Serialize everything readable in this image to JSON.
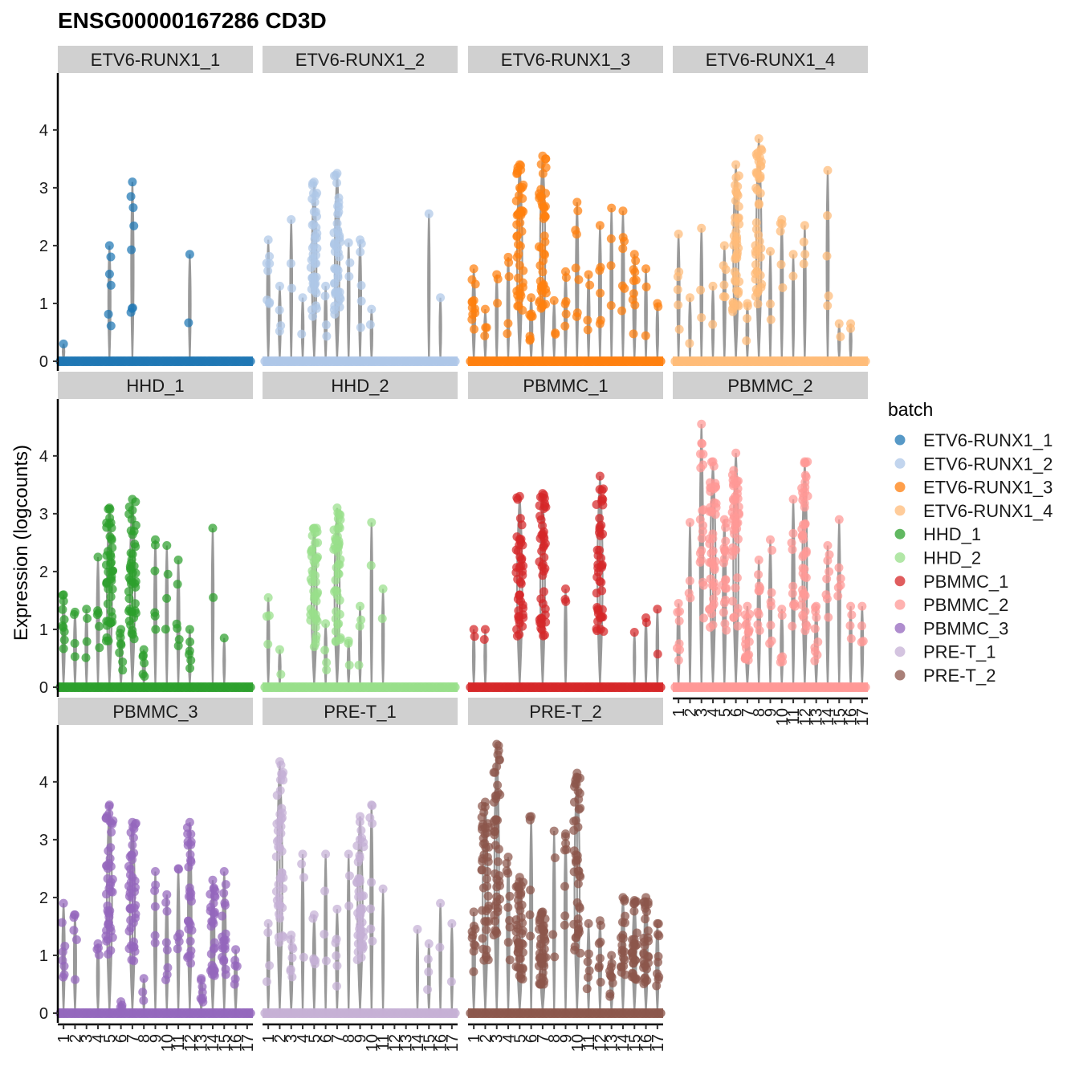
{
  "chart_data": {
    "type": "violin",
    "title": "ENSG00000167286 CD3D",
    "ylabel": "Expression (logcounts)",
    "xlabel": "",
    "ylim": [
      0,
      4.9
    ],
    "y_ticks": [
      0,
      1,
      2,
      3,
      4
    ],
    "categories": [
      "1",
      "2",
      "3",
      "4",
      "5",
      "6",
      "7",
      "8",
      "9",
      "10",
      "11",
      "12",
      "13",
      "14",
      "15",
      "16",
      "17"
    ],
    "legend": {
      "title": "batch",
      "placement": "right"
    },
    "violin_color": "#999999",
    "series": [
      {
        "name": "ETV6-RUNX1_1",
        "color": "#1f77b4",
        "nonzero": [
          1,
          0,
          0,
          0,
          6,
          0,
          8,
          0,
          0,
          0,
          0,
          2,
          0,
          0,
          0,
          0,
          0
        ],
        "max": [
          0.3,
          0,
          0,
          0,
          2.0,
          0,
          3.1,
          0,
          0,
          0,
          0,
          1.85,
          0,
          0,
          0,
          0,
          0
        ]
      },
      {
        "name": "ETV6-RUNX1_2",
        "color": "#aec7e8",
        "nonzero": [
          8,
          4,
          3,
          2,
          60,
          4,
          60,
          3,
          6,
          2,
          0,
          0,
          0,
          0,
          1,
          1,
          0
        ],
        "max": [
          2.1,
          1.3,
          2.45,
          1.1,
          3.1,
          1.3,
          3.25,
          2.05,
          2.1,
          0.9,
          0,
          0,
          0,
          0,
          2.55,
          1.1,
          0
        ]
      },
      {
        "name": "ETV6-RUNX1_3",
        "color": "#ff7f0e",
        "nonzero": [
          12,
          4,
          3,
          5,
          120,
          8,
          120,
          3,
          6,
          8,
          4,
          6,
          4,
          7,
          10,
          3,
          2
        ],
        "max": [
          1.6,
          0.9,
          1.5,
          1.8,
          3.4,
          1.1,
          3.55,
          1.05,
          1.55,
          2.75,
          1.5,
          2.35,
          2.65,
          2.6,
          1.85,
          1.6,
          1.0
        ]
      },
      {
        "name": "ETV6-RUNX1_4",
        "color": "#ffbb78",
        "nonzero": [
          6,
          2,
          3,
          2,
          6,
          80,
          4,
          80,
          3,
          6,
          2,
          4,
          1,
          5,
          2,
          2,
          0
        ],
        "max": [
          2.2,
          1.1,
          2.3,
          1.3,
          2.0,
          3.4,
          1.0,
          3.85,
          1.9,
          2.45,
          1.85,
          2.35,
          0,
          3.3,
          0.65,
          0.65,
          0
        ]
      },
      {
        "name": "HHD_1",
        "color": "#2ca02c",
        "nonzero": [
          10,
          4,
          4,
          6,
          120,
          8,
          120,
          6,
          6,
          4,
          6,
          6,
          0,
          2,
          1,
          0,
          0
        ],
        "max": [
          1.6,
          1.3,
          1.35,
          2.25,
          3.1,
          1.0,
          3.25,
          0.65,
          2.55,
          2.45,
          2.2,
          1.0,
          0,
          2.75,
          0.85,
          0,
          0
        ]
      },
      {
        "name": "HHD_2",
        "color": "#98df8a",
        "nonzero": [
          4,
          2,
          0,
          0,
          80,
          4,
          80,
          3,
          4,
          2,
          2,
          0,
          0,
          1,
          0,
          0,
          0
        ],
        "max": [
          1.55,
          0.65,
          0,
          0,
          2.75,
          1.1,
          3.1,
          0.8,
          1.4,
          2.85,
          1.7,
          0,
          0,
          0,
          0,
          0,
          0
        ]
      },
      {
        "name": "PBMMC_1",
        "color": "#d62728",
        "nonzero": [
          2,
          2,
          0,
          0,
          100,
          0,
          60,
          0,
          3,
          0,
          0,
          100,
          0,
          0,
          1,
          2,
          2
        ],
        "max": [
          1.0,
          1.0,
          0,
          0,
          3.3,
          0,
          3.35,
          0,
          1.7,
          0,
          0,
          3.65,
          0,
          0,
          0.95,
          1.2,
          1.35
        ]
      },
      {
        "name": "PBMMC_2",
        "color": "#ff9896",
        "nonzero": [
          8,
          4,
          20,
          200,
          20,
          200,
          20,
          10,
          8,
          6,
          10,
          60,
          10,
          8,
          6,
          4,
          4
        ],
        "max": [
          1.45,
          2.85,
          4.55,
          3.9,
          2.9,
          4.05,
          1.4,
          2.2,
          2.55,
          1.35,
          3.25,
          3.9,
          1.4,
          2.45,
          2.9,
          1.4,
          1.4
        ]
      },
      {
        "name": "PBMMC_3",
        "color": "#9467bd",
        "nonzero": [
          8,
          6,
          0,
          4,
          120,
          4,
          120,
          3,
          6,
          8,
          6,
          30,
          8,
          30,
          20,
          6,
          1
        ],
        "max": [
          1.9,
          1.7,
          0,
          1.2,
          3.6,
          0.2,
          3.3,
          0.6,
          2.45,
          2.05,
          2.5,
          3.3,
          0.6,
          2.3,
          2.45,
          1.1,
          0
        ]
      },
      {
        "name": "PRE-T_1",
        "color": "#c5b0d5",
        "nonzero": [
          4,
          120,
          8,
          4,
          6,
          4,
          6,
          3,
          120,
          8,
          1,
          0,
          0,
          1,
          4,
          2,
          2
        ],
        "max": [
          1.55,
          4.35,
          1.35,
          2.75,
          1.7,
          2.75,
          1.8,
          2.75,
          3.4,
          3.6,
          2.15,
          0,
          0,
          1.45,
          1.2,
          1.9,
          1.55
        ]
      },
      {
        "name": "PRE-T_2",
        "color": "#8c564b",
        "nonzero": [
          10,
          120,
          60,
          10,
          80,
          6,
          80,
          4,
          8,
          160,
          6,
          8,
          10,
          20,
          30,
          30,
          10
        ],
        "max": [
          1.75,
          3.65,
          4.65,
          2.7,
          2.35,
          3.4,
          1.75,
          3.15,
          3.1,
          4.15,
          1.55,
          1.6,
          1.0,
          2.0,
          1.95,
          2.0,
          1.55
        ]
      }
    ]
  }
}
